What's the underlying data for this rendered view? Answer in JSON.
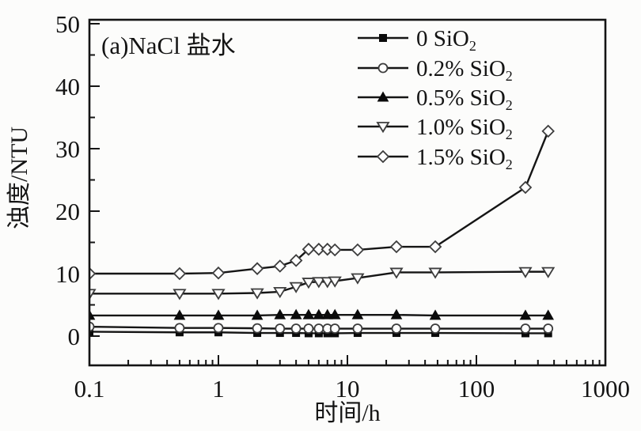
{
  "figure": {
    "background": "#fcfcfb",
    "line_color": "#151515",
    "open_marker_stroke": "#3d3d3d",
    "filled_marker_color": "#0b0b0b",
    "frame_color": "#141414"
  },
  "chart_data": {
    "type": "line",
    "panel_label": "(a)NaCl 盐水",
    "xlabel": "时间/h",
    "ylabel": "浊度/NTU",
    "x_scale": "log",
    "xlim": [
      0.1,
      1000
    ],
    "ylim": [
      -5,
      50.6
    ],
    "x_ticks": [
      0.1,
      1,
      10,
      100,
      1000
    ],
    "x_tick_labels": [
      "0.1",
      "1",
      "10",
      "100",
      "1000"
    ],
    "y_ticks": [
      0,
      10,
      20,
      30,
      40,
      50
    ],
    "y_tick_labels": [
      "0",
      "10",
      "20",
      "30",
      "40",
      "50"
    ],
    "y_minor_ticks": [
      5,
      15,
      25,
      35,
      45
    ],
    "grid": false,
    "legend_position": "top-center-inside",
    "x": [
      0.1,
      0.5,
      1,
      2,
      3,
      4,
      5,
      6,
      7,
      8,
      12,
      24,
      48,
      240,
      360
    ],
    "series": [
      {
        "name": "0 SiO₂",
        "marker": "square-filled",
        "values": [
          0.7,
          0.6,
          0.6,
          0.5,
          0.5,
          0.5,
          0.45,
          0.45,
          0.45,
          0.45,
          0.5,
          0.5,
          0.5,
          0.45,
          0.45
        ]
      },
      {
        "name": "0.2% SiO₂",
        "marker": "circle-open",
        "values": [
          1.5,
          1.3,
          1.3,
          1.25,
          1.2,
          1.2,
          1.2,
          1.2,
          1.2,
          1.2,
          1.2,
          1.2,
          1.2,
          1.2,
          1.2
        ]
      },
      {
        "name": "0.5% SiO₂",
        "marker": "triangle-up-filled",
        "values": [
          3.3,
          3.3,
          3.3,
          3.3,
          3.4,
          3.4,
          3.4,
          3.4,
          3.4,
          3.4,
          3.4,
          3.4,
          3.3,
          3.3,
          3.3
        ]
      },
      {
        "name": "1.0% SiO₂",
        "marker": "triangle-down-open",
        "values": [
          6.8,
          6.8,
          6.8,
          6.9,
          7.1,
          7.9,
          8.6,
          8.7,
          8.7,
          8.8,
          9.3,
          10.2,
          10.2,
          10.3,
          10.3
        ]
      },
      {
        "name": "1.5% SiO₂",
        "marker": "diamond-open",
        "values": [
          10.0,
          10.0,
          10.1,
          10.8,
          11.2,
          12.1,
          13.9,
          13.9,
          13.9,
          13.8,
          13.8,
          14.3,
          14.3,
          23.8,
          32.8
        ]
      }
    ]
  }
}
